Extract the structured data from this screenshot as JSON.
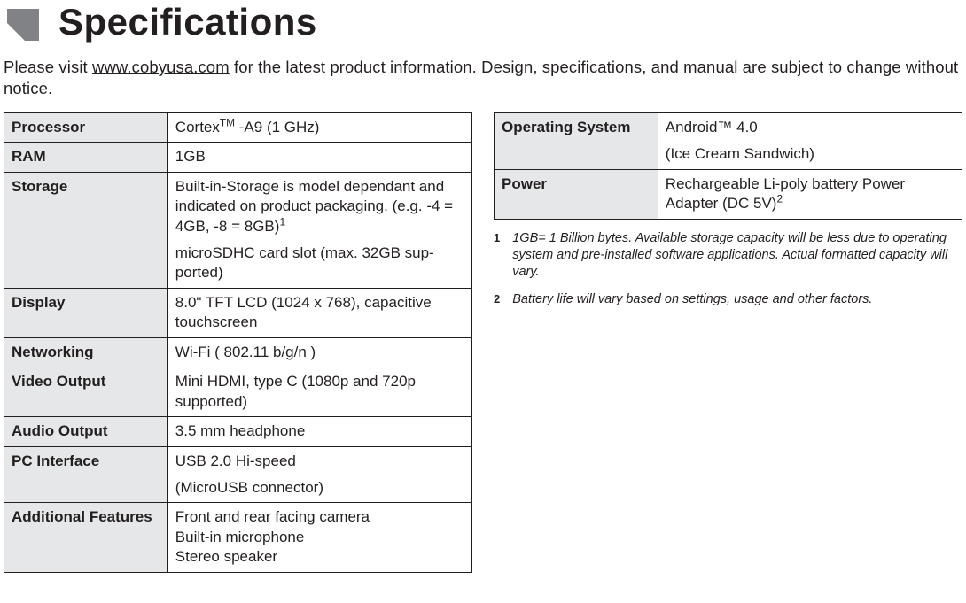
{
  "title": "Specifications",
  "intro_before": "Please visit ",
  "intro_link": "www.cobyusa.com",
  "intro_after": " for the latest product information. Design, specifications, and manual are subject to change without notice.",
  "left_table": [
    {
      "label": "Processor",
      "value": "Cortex<span class='sup'>TM</span> -A9 (1 GHz)"
    },
    {
      "label": "RAM",
      "value": "1GB"
    },
    {
      "label": "Storage",
      "value": "<p>Built-in-Storage is model dependant and indicated on product packaging. (e.g. -4 = 4GB, -8 = 8GB)<span class='sup'>1</span></p><p>microSDHC card slot (max. 32GB sup-ported)</p>"
    },
    {
      "label": "Display",
      "value": "8.0\" TFT LCD (1024 x 768), capacitive touchscreen"
    },
    {
      "label": "Networking",
      "value": "Wi-Fi ( 802.11 b/g/n )"
    },
    {
      "label": "Video Output",
      "value": "Mini HDMI, type C (1080p and 720p supported)"
    },
    {
      "label": "Audio Output",
      "value": "3.5 mm headphone"
    },
    {
      "label": "PC Interface",
      "value": "<p>USB 2.0 Hi-speed</p><p>(MicroUSB connector)</p>"
    },
    {
      "label": "Additional Features",
      "value": "Front and rear facing camera<br>Built-in microphone<br>Stereo speaker"
    }
  ],
  "right_table": [
    {
      "label": "Operating System",
      "value": "<p>Android™ 4.0</p><p>(Ice Cream Sandwich)</p>"
    },
    {
      "label": "Power",
      "value": "Rechargeable Li-poly battery Power Adapter (DC 5V)<span class='sup'>2</span>"
    }
  ],
  "notes": [
    {
      "num": "1",
      "text": "1GB= 1 Billion bytes.  Available storage capacity will be less due to operating system and pre-installed software applications.   Actual formatted capacity will vary."
    },
    {
      "num": "2",
      "text": "Battery life will vary based on settings, usage and other factors."
    }
  ],
  "colors": {
    "text": "#231f20",
    "header_bg": "#e6e7e8",
    "border": "#231f20",
    "arrow_fill": "#808285"
  }
}
